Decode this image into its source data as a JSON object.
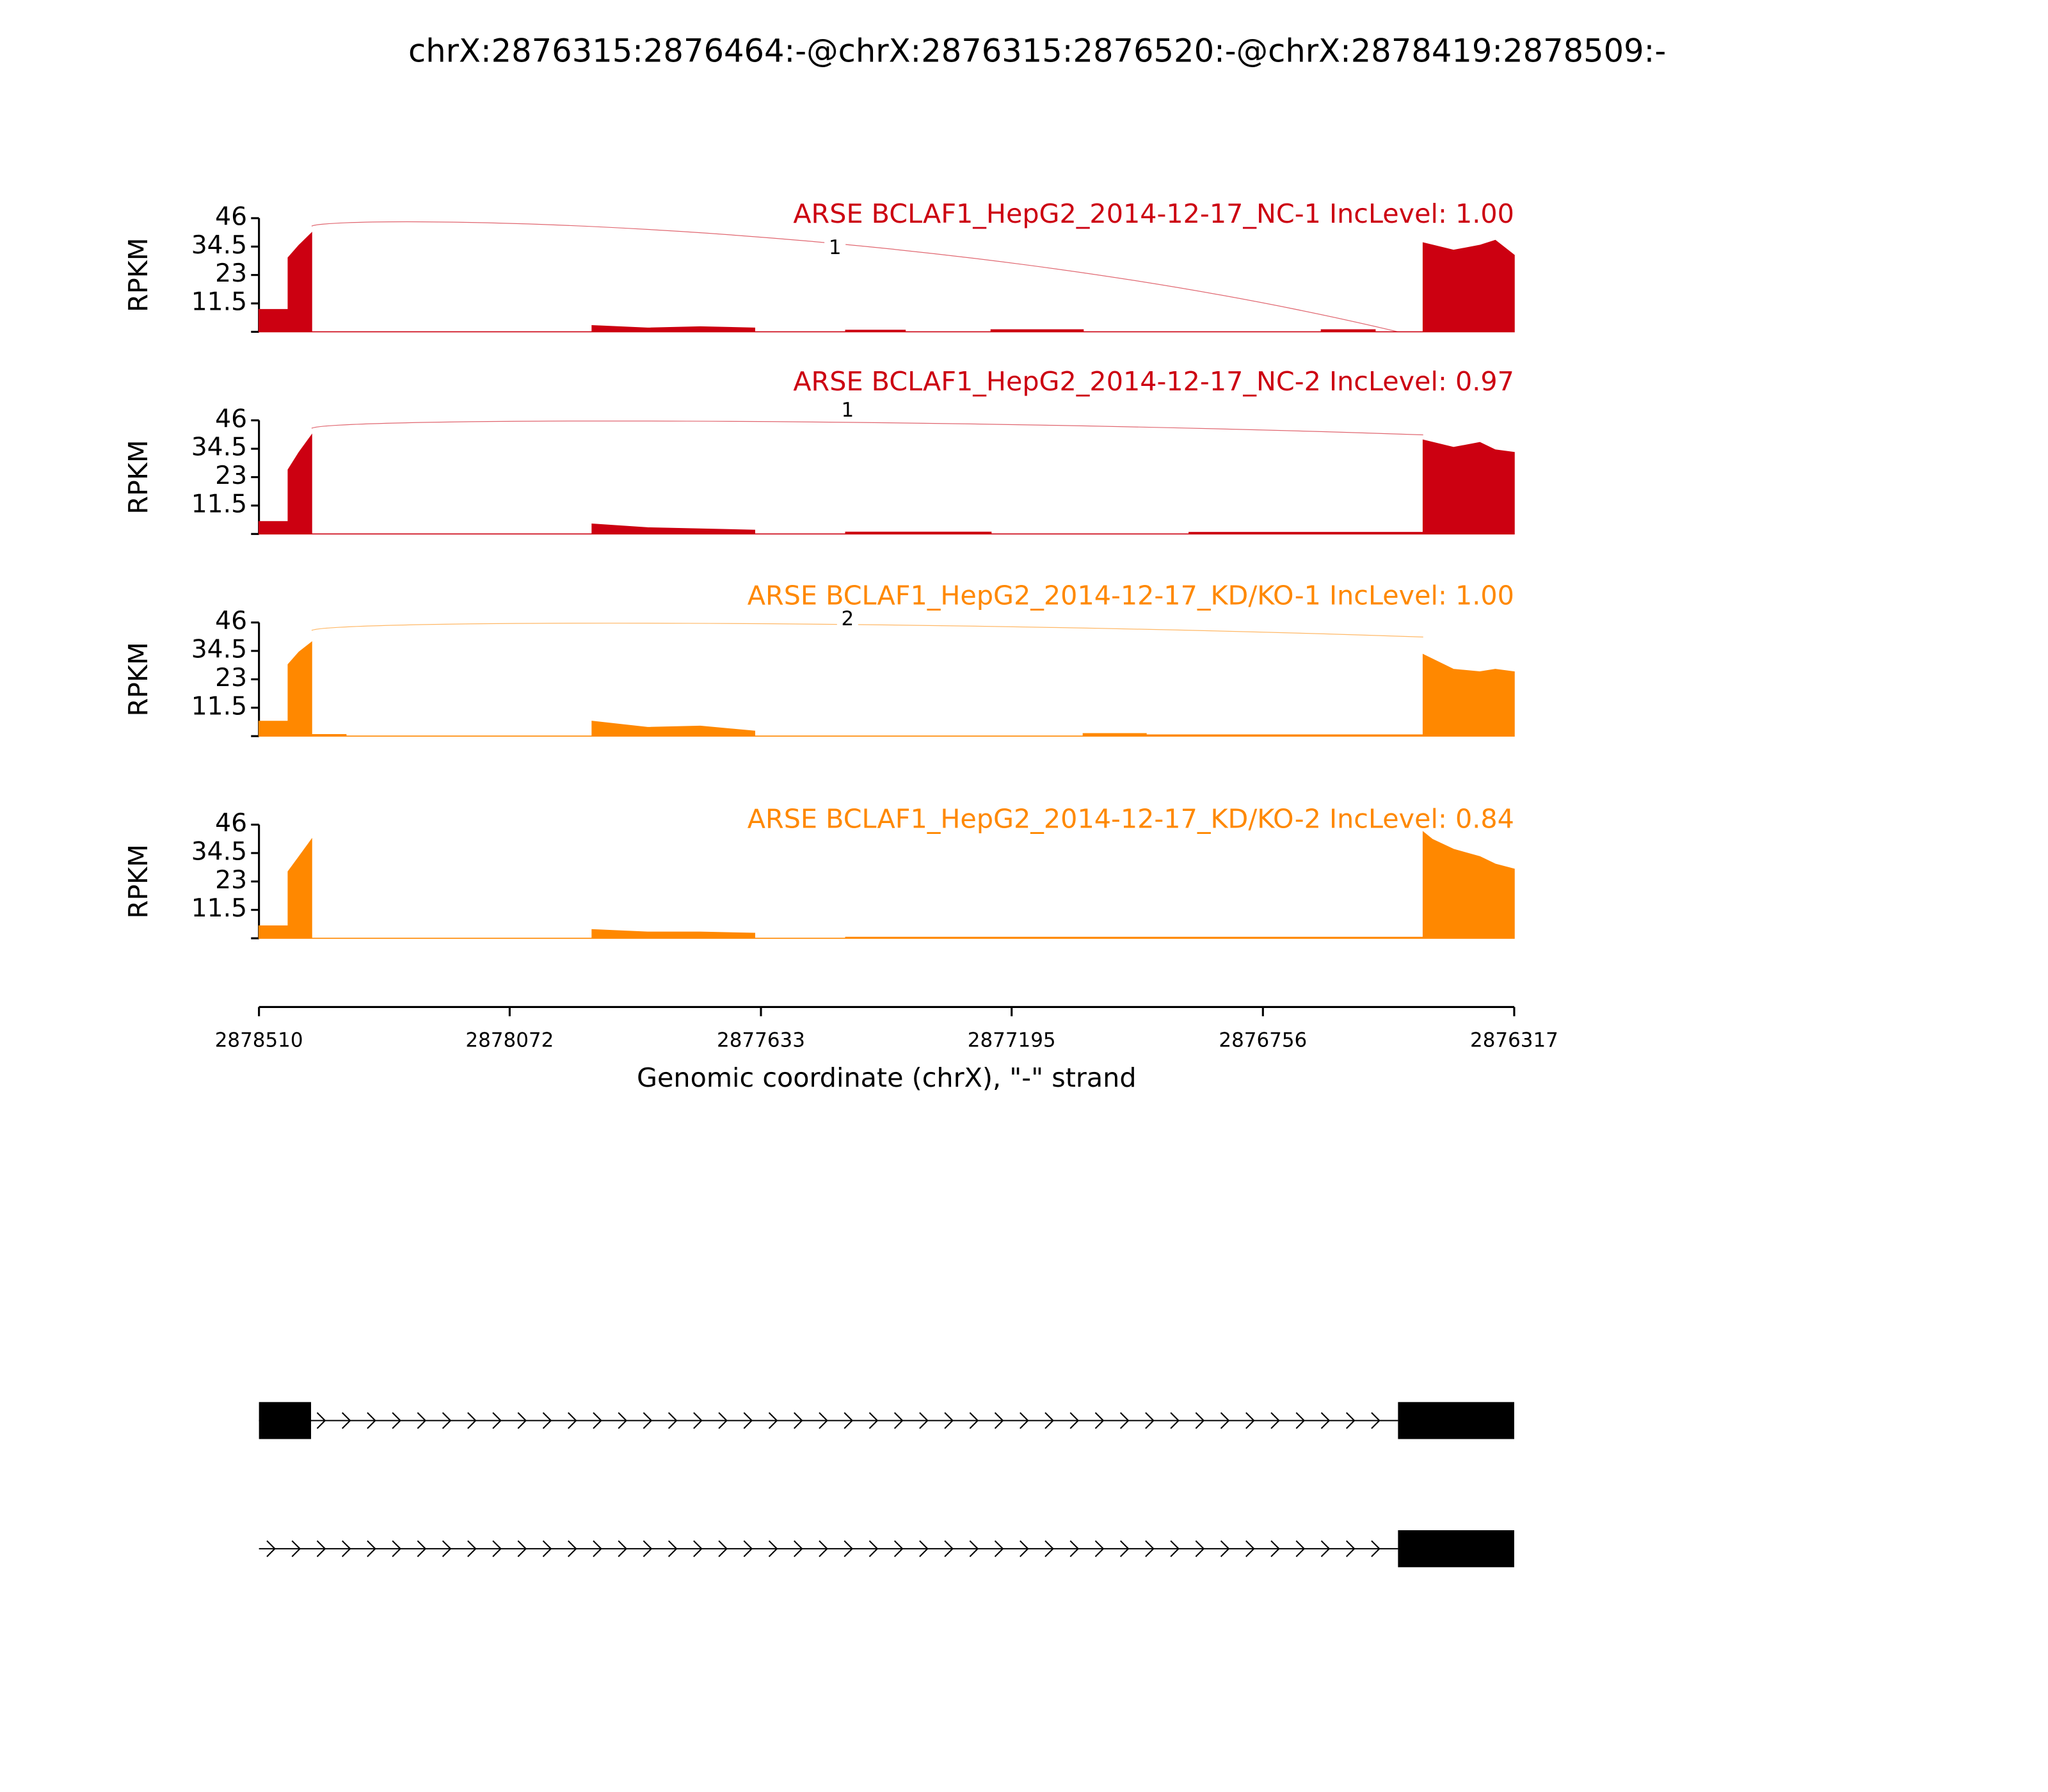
{
  "chart_data": {
    "type": "sashimi",
    "title": "chrX:2876315:2876464:-@chrX:2876315:2876520:-@chrX:2878419:2878509:-",
    "xlabel": "Genomic coordinate (chrX), \"-\" strand",
    "ylabel": "RPKM",
    "xlim": [
      2878510,
      2876317
    ],
    "xticks": [
      2878510,
      2878072,
      2877633,
      2877195,
      2876756,
      2876317
    ],
    "ylim": [
      0,
      46
    ],
    "yticks": [
      11.5,
      23,
      34.5,
      46
    ],
    "tracks": [
      {
        "name": "ARSE BCLAF1_HepG2_2014-12-17_NC-1 IncLevel: 1.00",
        "color": "#cc0011",
        "x": [
          2878510,
          2878459,
          2878459,
          2878440,
          2878418,
          2878418,
          2877928,
          2877928,
          2877831,
          2877739,
          2877644,
          2877644,
          2877485,
          2877485,
          2877381,
          2877381,
          2877231,
          2877231,
          2877070,
          2877070,
          2876654,
          2876654,
          2876560,
          2876560,
          2876476,
          2876476,
          2876423,
          2876377,
          2876350,
          2876317
        ],
        "values": [
          9,
          9,
          30,
          35,
          40,
          0,
          0,
          2.5,
          1.5,
          2,
          1.5,
          0,
          0,
          0.6,
          0.6,
          0,
          0,
          0.8,
          0.8,
          0,
          0,
          0.8,
          0.8,
          0,
          0,
          36,
          33,
          35,
          37,
          31
        ],
        "junctions": [
          {
            "start": 2878418,
            "end": 2876520,
            "label": 1
          }
        ]
      },
      {
        "name": "ARSE BCLAF1_HepG2_2014-12-17_NC-2 IncLevel: 0.97",
        "color": "#cc0011",
        "x": [
          2878510,
          2878459,
          2878459,
          2878440,
          2878418,
          2878418,
          2877928,
          2877928,
          2877831,
          2877739,
          2877644,
          2877644,
          2877485,
          2877485,
          2877231,
          2877231,
          2876885,
          2876885,
          2876476,
          2876476,
          2876423,
          2876377,
          2876350,
          2876317
        ],
        "values": [
          5,
          5,
          26,
          33,
          40,
          0,
          0,
          4,
          2.5,
          2,
          1.5,
          0,
          0,
          0.7,
          0.7,
          0,
          0,
          0.6,
          0.6,
          38,
          35,
          37,
          34,
          33
        ],
        "junctions": [
          {
            "start": 2878418,
            "end": 2876476,
            "label": 1
          }
        ]
      },
      {
        "name": "ARSE BCLAF1_HepG2_2014-12-17_KD/KO-1 IncLevel: 1.00",
        "color": "#ff8800",
        "x": [
          2878510,
          2878459,
          2878459,
          2878440,
          2878418,
          2878418,
          2878358,
          2878358,
          2877928,
          2877928,
          2877831,
          2877739,
          2877644,
          2877644,
          2877070,
          2877070,
          2876960,
          2876960,
          2876476,
          2876476,
          2876423,
          2876377,
          2876350,
          2876317
        ],
        "values": [
          6,
          6,
          29,
          34,
          38,
          0.6,
          0.6,
          0,
          0,
          6,
          3.5,
          4,
          2,
          0,
          0,
          1,
          1,
          0.5,
          0.5,
          33,
          27,
          26,
          27,
          26
        ],
        "junctions": [
          {
            "start": 2878418,
            "end": 2876476,
            "label": 2
          }
        ]
      },
      {
        "name": "ARSE BCLAF1_HepG2_2014-12-17_KD/KO-2 IncLevel: 0.84",
        "color": "#ff8800",
        "x": [
          2878510,
          2878459,
          2878459,
          2878440,
          2878418,
          2878418,
          2877928,
          2877928,
          2877831,
          2877739,
          2877644,
          2877644,
          2877485,
          2877485,
          2876476,
          2876476,
          2876460,
          2876423,
          2876377,
          2876350,
          2876317
        ],
        "values": [
          5,
          5,
          27,
          33,
          40,
          0,
          0,
          3.5,
          2.5,
          2.5,
          2,
          0,
          0,
          0.4,
          0.4,
          43,
          40,
          36,
          33,
          30,
          28
        ],
        "junctions": []
      }
    ],
    "transcripts": [
      {
        "exons": [
          [
            2878510,
            2878419
          ],
          [
            2876520,
            2876317
          ]
        ]
      },
      {
        "exons": [
          [
            2876520,
            2876317
          ]
        ]
      }
    ]
  }
}
